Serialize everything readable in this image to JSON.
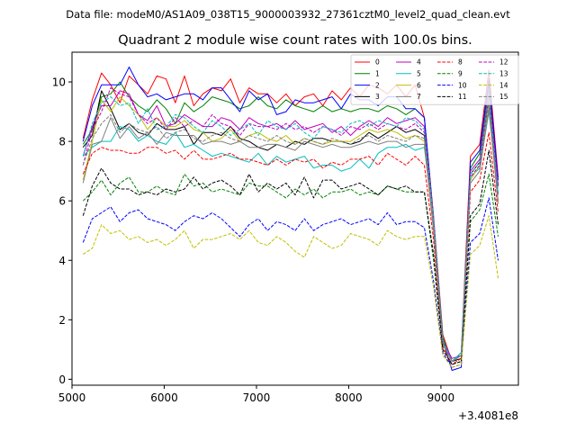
{
  "suptitle": "Data file: modeM0/AS1A09_038T15_9000003932_27361cztM0_level2_quad_clean.evt",
  "chart_data": {
    "type": "line",
    "title": "Quadrant 2 module wise count rates with 100.0s bins.",
    "xlabel": "",
    "ylabel": "",
    "x_offset_label": "+3.4081e8",
    "x_offset": 340810000,
    "xlim": [
      5000,
      9840
    ],
    "ylim": [
      -0.2,
      11.0
    ],
    "xticks": [
      5000,
      6000,
      7000,
      8000,
      9000
    ],
    "yticks": [
      0,
      2,
      4,
      6,
      8,
      10
    ],
    "grid": false,
    "legend": {
      "placement": "top-right",
      "columns": 4
    },
    "x": [
      5120,
      5220,
      5320,
      5420,
      5520,
      5620,
      5720,
      5820,
      5920,
      6020,
      6120,
      6220,
      6320,
      6420,
      6520,
      6620,
      6720,
      6820,
      6920,
      7020,
      7120,
      7220,
      7320,
      7420,
      7520,
      7620,
      7720,
      7820,
      7920,
      8020,
      8120,
      8220,
      8320,
      8420,
      8520,
      8620,
      8720,
      8820,
      8920,
      9020,
      9120,
      9220,
      9320,
      9420,
      9520,
      9620
    ],
    "series": [
      {
        "name": "0",
        "color": "#ff0000",
        "linestyle": "solid",
        "values": [
          8.1,
          9.4,
          10.3,
          9.9,
          9.3,
          10.2,
          9.9,
          9.6,
          10.2,
          10.1,
          9.3,
          10.2,
          9.2,
          9.6,
          9.8,
          9.7,
          10.1,
          9.3,
          9.8,
          9.6,
          9.6,
          9.3,
          9.6,
          9.2,
          9.5,
          9.6,
          9.2,
          9.7,
          9.4,
          9.8,
          9.5,
          9.9,
          9.8,
          9.6,
          9.9,
          9.5,
          9.9,
          8.8,
          5.5,
          1.5,
          0.6,
          0.9,
          7.5,
          7.9,
          10.4,
          6.8
        ]
      },
      {
        "name": "1",
        "color": "#008000",
        "linestyle": "solid",
        "values": [
          7.9,
          8.4,
          9.5,
          9.6,
          10.0,
          9.5,
          9.2,
          9.0,
          9.4,
          9.1,
          8.6,
          9.3,
          9.0,
          9.2,
          9.5,
          9.4,
          9.3,
          9.1,
          9.2,
          9.5,
          9.2,
          9.1,
          9.4,
          9.2,
          9.1,
          9.0,
          9.2,
          9.0,
          9.1,
          9.0,
          9.1,
          9.1,
          9.0,
          9.2,
          9.1,
          8.9,
          9.1,
          8.8,
          5.4,
          1.4,
          0.6,
          0.8,
          7.1,
          7.6,
          9.9,
          6.5
        ]
      },
      {
        "name": "2",
        "color": "#0000ff",
        "linestyle": "solid",
        "values": [
          8.0,
          9.2,
          9.9,
          9.9,
          9.9,
          10.5,
          9.9,
          9.5,
          9.6,
          9.4,
          9.5,
          9.6,
          9.6,
          9.4,
          9.8,
          9.8,
          9.4,
          9.0,
          9.7,
          9.4,
          9.6,
          8.9,
          9.0,
          9.4,
          9.3,
          9.3,
          9.4,
          9.5,
          9.1,
          9.6,
          9.4,
          9.4,
          9.2,
          9.5,
          9.5,
          9.1,
          9.1,
          8.8,
          5.4,
          1.3,
          0.3,
          0.4,
          7.3,
          7.7,
          10.1,
          6.7
        ]
      },
      {
        "name": "3",
        "color": "#000000",
        "linestyle": "solid",
        "values": [
          7.8,
          8.2,
          9.7,
          9.1,
          8.4,
          8.6,
          8.3,
          8.2,
          8.6,
          8.4,
          8.4,
          8.5,
          7.9,
          8.3,
          8.3,
          8.2,
          8.5,
          8.1,
          8.0,
          7.8,
          7.7,
          7.9,
          7.8,
          8.0,
          7.9,
          8.1,
          8.1,
          8.0,
          8.0,
          7.9,
          8.0,
          8.3,
          8.1,
          8.3,
          8.5,
          8.3,
          8.4,
          8.2,
          5.1,
          1.2,
          0.6,
          0.7,
          6.9,
          7.3,
          9.5,
          6.5
        ]
      },
      {
        "name": "4",
        "color": "#bf00bf",
        "linestyle": "solid",
        "values": [
          7.5,
          8.5,
          9.2,
          9.2,
          9.7,
          9.6,
          8.9,
          8.7,
          9.2,
          8.5,
          8.6,
          8.9,
          8.7,
          8.5,
          8.5,
          8.8,
          8.7,
          8.4,
          8.8,
          8.6,
          8.5,
          8.6,
          8.4,
          8.7,
          8.4,
          8.5,
          8.6,
          8.3,
          8.5,
          8.2,
          8.5,
          8.7,
          8.5,
          8.8,
          8.6,
          8.7,
          8.8,
          8.5,
          5.4,
          1.3,
          0.7,
          0.8,
          7.0,
          7.4,
          9.7,
          6.5
        ]
      },
      {
        "name": "5",
        "color": "#00bfbf",
        "linestyle": "solid",
        "values": [
          7.5,
          7.8,
          8.0,
          8.0,
          8.5,
          8.4,
          8.0,
          8.2,
          8.0,
          7.9,
          8.3,
          7.8,
          7.9,
          7.7,
          7.5,
          7.6,
          7.5,
          7.4,
          7.3,
          7.6,
          7.2,
          7.5,
          7.3,
          7.4,
          7.5,
          7.1,
          7.2,
          7.2,
          7.0,
          7.1,
          7.4,
          7.1,
          7.6,
          7.8,
          7.8,
          7.9,
          7.7,
          7.8,
          5.3,
          1.3,
          0.6,
          0.9,
          6.8,
          7.1,
          9.0,
          6.2
        ]
      },
      {
        "name": "6",
        "color": "#bfbf00",
        "linestyle": "solid",
        "values": [
          6.7,
          8.0,
          9.4,
          9.0,
          9.5,
          9.2,
          8.9,
          8.4,
          8.8,
          8.5,
          8.5,
          8.7,
          8.4,
          8.3,
          8.0,
          8.1,
          8.4,
          8.0,
          8.2,
          8.3,
          8.1,
          8.0,
          8.2,
          7.9,
          8.1,
          8.0,
          7.9,
          8.0,
          8.0,
          8.0,
          8.2,
          8.4,
          8.3,
          8.4,
          8.3,
          8.1,
          8.2,
          8.0,
          5.2,
          1.2,
          0.6,
          0.8,
          6.7,
          7.2,
          9.3,
          6.0
        ]
      },
      {
        "name": "7",
        "color": "#808080",
        "linestyle": "solid",
        "values": [
          6.6,
          7.9,
          8.0,
          8.8,
          8.1,
          8.5,
          8.1,
          8.3,
          7.9,
          8.3,
          8.2,
          8.2,
          8.2,
          7.9,
          8.0,
          8.0,
          7.9,
          8.0,
          7.8,
          7.8,
          7.9,
          7.9,
          7.8,
          7.7,
          8.0,
          7.9,
          7.8,
          7.9,
          7.8,
          7.8,
          7.9,
          8.0,
          7.9,
          8.0,
          8.0,
          7.8,
          7.9,
          7.9,
          5.0,
          1.2,
          0.6,
          0.8,
          6.6,
          7.0,
          9.1,
          5.9
        ]
      },
      {
        "name": "8",
        "color": "#ff0000",
        "linestyle": "dashed",
        "values": [
          6.9,
          7.6,
          7.8,
          7.7,
          7.7,
          7.6,
          7.6,
          7.8,
          7.8,
          7.6,
          7.7,
          7.4,
          7.7,
          7.4,
          7.4,
          7.5,
          7.6,
          7.4,
          7.4,
          7.3,
          7.2,
          7.4,
          7.2,
          7.4,
          7.3,
          7.4,
          7.1,
          7.3,
          7.2,
          7.4,
          7.4,
          7.5,
          7.2,
          7.6,
          7.4,
          7.2,
          7.5,
          7.2,
          4.7,
          1.1,
          0.5,
          0.7,
          6.3,
          6.7,
          8.3,
          5.6
        ]
      },
      {
        "name": "9",
        "color": "#008000",
        "linestyle": "dashed",
        "values": [
          6.0,
          6.3,
          6.7,
          6.2,
          6.6,
          6.8,
          6.3,
          6.3,
          6.5,
          6.3,
          6.2,
          6.9,
          6.5,
          6.6,
          6.3,
          6.4,
          6.3,
          6.2,
          6.6,
          6.5,
          6.5,
          6.3,
          6.1,
          6.4,
          6.2,
          6.4,
          6.1,
          6.3,
          6.3,
          6.4,
          6.2,
          6.3,
          6.2,
          6.5,
          6.4,
          6.3,
          6.3,
          6.3,
          4.0,
          1.0,
          0.5,
          0.6,
          5.3,
          5.7,
          6.9,
          4.8
        ]
      },
      {
        "name": "10",
        "color": "#0000ff",
        "linestyle": "dashed",
        "values": [
          4.6,
          5.4,
          5.6,
          5.8,
          5.3,
          5.6,
          5.7,
          5.4,
          5.3,
          5.2,
          5.0,
          5.3,
          5.5,
          5.4,
          5.6,
          5.4,
          5.1,
          4.8,
          5.2,
          5.4,
          5.0,
          5.3,
          5.2,
          5.0,
          5.4,
          5.0,
          5.2,
          5.3,
          5.4,
          5.2,
          5.3,
          5.4,
          5.2,
          5.6,
          5.2,
          5.3,
          5.3,
          5.1,
          3.3,
          0.9,
          0.4,
          0.5,
          4.6,
          4.9,
          6.1,
          4.0
        ]
      },
      {
        "name": "11",
        "color": "#000000",
        "linestyle": "dashed",
        "values": [
          5.5,
          6.5,
          7.1,
          6.6,
          6.4,
          6.4,
          6.2,
          6.3,
          6.2,
          6.4,
          6.3,
          6.4,
          6.8,
          6.4,
          6.6,
          6.7,
          6.5,
          6.2,
          6.9,
          6.3,
          6.6,
          6.4,
          6.6,
          6.2,
          6.8,
          6.1,
          6.7,
          6.7,
          6.4,
          6.5,
          6.6,
          6.4,
          6.2,
          6.5,
          6.4,
          6.5,
          6.3,
          6.3,
          4.2,
          1.0,
          0.5,
          0.6,
          5.5,
          5.9,
          7.7,
          5.2
        ]
      },
      {
        "name": "12",
        "color": "#bf00bf",
        "linestyle": "dashed",
        "values": [
          7.2,
          8.4,
          9.0,
          9.8,
          9.6,
          9.5,
          8.9,
          8.6,
          8.8,
          8.4,
          8.8,
          8.5,
          8.7,
          8.5,
          8.9,
          8.6,
          8.5,
          8.2,
          8.6,
          8.5,
          8.5,
          8.4,
          8.6,
          8.4,
          8.5,
          8.3,
          8.5,
          8.4,
          8.2,
          8.5,
          8.4,
          8.6,
          8.4,
          8.6,
          8.5,
          8.4,
          8.6,
          8.3,
          5.3,
          1.3,
          0.6,
          0.8,
          6.8,
          7.2,
          9.5,
          6.2
        ]
      },
      {
        "name": "13",
        "color": "#00bfbf",
        "linestyle": "dashed",
        "values": [
          7.5,
          8.6,
          9.3,
          9.5,
          9.2,
          9.3,
          8.6,
          9.1,
          8.4,
          8.5,
          8.9,
          8.8,
          8.5,
          8.3,
          8.7,
          8.5,
          8.2,
          8.4,
          8.6,
          8.2,
          8.7,
          8.5,
          8.4,
          8.6,
          8.3,
          8.1,
          8.5,
          8.4,
          8.3,
          8.6,
          8.7,
          8.5,
          8.7,
          8.6,
          8.5,
          8.8,
          8.7,
          8.4,
          5.4,
          1.3,
          0.6,
          0.8,
          6.9,
          7.3,
          9.6,
          6.3
        ]
      },
      {
        "name": "14",
        "color": "#bfbf00",
        "linestyle": "dashed",
        "values": [
          4.2,
          4.4,
          5.2,
          4.9,
          5.0,
          4.7,
          4.8,
          4.6,
          4.7,
          4.5,
          4.7,
          5.0,
          4.4,
          4.7,
          4.7,
          4.8,
          4.9,
          4.7,
          5.0,
          4.6,
          4.5,
          4.8,
          4.6,
          4.3,
          4.1,
          4.8,
          4.6,
          4.4,
          4.5,
          4.9,
          4.8,
          4.7,
          4.5,
          5.0,
          4.8,
          4.7,
          4.8,
          4.8,
          3.1,
          0.8,
          0.4,
          0.5,
          4.2,
          4.5,
          5.5,
          3.4
        ]
      },
      {
        "name": "15",
        "color": "#808080",
        "linestyle": "dashed",
        "values": [
          7.2,
          8.1,
          8.6,
          8.9,
          8.3,
          8.6,
          8.4,
          8.3,
          8.5,
          8.1,
          8.3,
          8.4,
          8.1,
          8.0,
          8.2,
          8.3,
          8.1,
          8.0,
          8.2,
          8.1,
          8.0,
          8.2,
          8.0,
          7.9,
          8.1,
          8.0,
          7.9,
          8.1,
          8.0,
          7.9,
          8.1,
          8.2,
          8.0,
          8.2,
          8.1,
          8.0,
          8.2,
          8.1,
          5.1,
          1.2,
          0.6,
          0.8,
          6.6,
          7.0,
          9.2,
          6.0
        ]
      }
    ]
  }
}
